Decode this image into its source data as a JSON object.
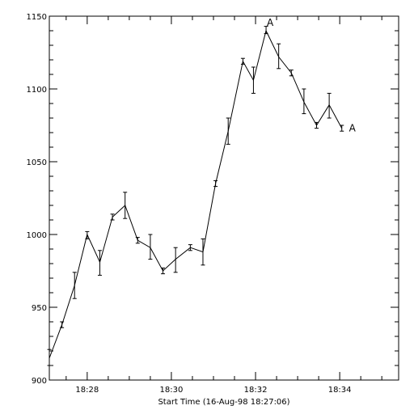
{
  "chart_data": {
    "type": "line",
    "title": "",
    "xlabel": "Start Time (16-Aug-98 18:27:06)",
    "ylabel": "",
    "xlim": [
      27.1,
      35.4
    ],
    "ylim": [
      900,
      1150
    ],
    "x_ticks": [
      {
        "value": 28,
        "label": "18:28"
      },
      {
        "value": 30,
        "label": "18:30"
      },
      {
        "value": 32,
        "label": "18:32"
      },
      {
        "value": 34,
        "label": "18:34"
      }
    ],
    "y_ticks": [
      900,
      950,
      1000,
      1050,
      1100,
      1150
    ],
    "grid": false,
    "series": [
      {
        "name": "",
        "points": [
          {
            "x": 27.1,
            "y": 915,
            "lo": 910,
            "hi": 921
          },
          {
            "x": 27.4,
            "y": 938,
            "lo": 936,
            "hi": 940
          },
          {
            "x": 27.7,
            "y": 965,
            "lo": 956,
            "hi": 974
          },
          {
            "x": 28.0,
            "y": 1000,
            "lo": 997,
            "hi": 1002
          },
          {
            "x": 28.3,
            "y": 981,
            "lo": 972,
            "hi": 989
          },
          {
            "x": 28.6,
            "y": 1012,
            "lo": 1010,
            "hi": 1014
          },
          {
            "x": 28.9,
            "y": 1020,
            "lo": 1011,
            "hi": 1029
          },
          {
            "x": 29.2,
            "y": 996,
            "lo": 994,
            "hi": 998
          },
          {
            "x": 29.5,
            "y": 991,
            "lo": 983,
            "hi": 1000
          },
          {
            "x": 29.8,
            "y": 975,
            "lo": 973,
            "hi": 977
          },
          {
            "x": 30.1,
            "y": 983,
            "lo": 974,
            "hi": 991
          },
          {
            "x": 30.45,
            "y": 991,
            "lo": 989,
            "hi": 993
          },
          {
            "x": 30.75,
            "y": 988,
            "lo": 979,
            "hi": 997
          },
          {
            "x": 31.05,
            "y": 1035,
            "lo": 1033,
            "hi": 1037
          },
          {
            "x": 31.35,
            "y": 1071,
            "lo": 1062,
            "hi": 1080
          },
          {
            "x": 31.7,
            "y": 1119,
            "lo": 1117,
            "hi": 1121
          },
          {
            "x": 31.95,
            "y": 1106,
            "lo": 1097,
            "hi": 1115
          },
          {
            "x": 32.25,
            "y": 1140,
            "lo": 1138,
            "hi": 1143
          },
          {
            "x": 32.55,
            "y": 1122,
            "lo": 1114,
            "hi": 1131
          },
          {
            "x": 32.85,
            "y": 1111,
            "lo": 1109,
            "hi": 1113
          },
          {
            "x": 33.15,
            "y": 1091,
            "lo": 1083,
            "hi": 1100
          },
          {
            "x": 33.45,
            "y": 1075,
            "lo": 1073,
            "hi": 1077
          },
          {
            "x": 33.75,
            "y": 1089,
            "lo": 1080,
            "hi": 1097
          },
          {
            "x": 34.05,
            "y": 1073,
            "lo": 1071,
            "hi": 1075
          }
        ]
      }
    ],
    "annotations": [
      {
        "text": "A",
        "x": 32.25,
        "y": 1140
      },
      {
        "text": "A",
        "x": 34.05,
        "y": 1073
      }
    ]
  }
}
